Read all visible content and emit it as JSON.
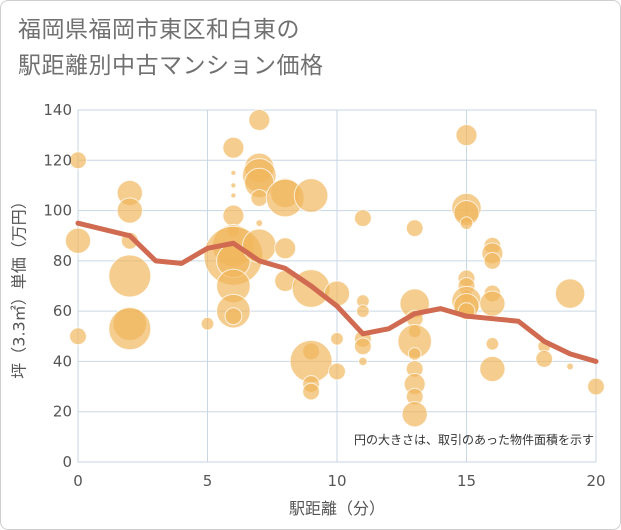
{
  "title_line1": "福岡県福岡市東区和白東の",
  "title_line2": "駅距離別中古マンション価格",
  "chart_data": {
    "type": "scatter",
    "xlabel": "駅距離（分）",
    "ylabel": "坪（3.3㎡）単価（万円）",
    "note": "円の大きさは、取引のあった物件面積を示す",
    "xlim": [
      0,
      20
    ],
    "ylim": [
      0,
      140
    ],
    "xticks": [
      "0",
      "5",
      "10",
      "15",
      "20"
    ],
    "yticks": [
      "0",
      "20",
      "40",
      "60",
      "80",
      "100",
      "120",
      "140"
    ],
    "grid": true,
    "colors": {
      "bubble": "#f0b65a",
      "line": "#d06a50",
      "grid": "#c9d6e3"
    },
    "bubbles": [
      {
        "x": 0,
        "y": 120,
        "s": 2
      },
      {
        "x": 0,
        "y": 88,
        "s": 3
      },
      {
        "x": 0,
        "y": 50,
        "s": 2
      },
      {
        "x": 2,
        "y": 107,
        "s": 3
      },
      {
        "x": 2,
        "y": 100,
        "s": 3
      },
      {
        "x": 2,
        "y": 88,
        "s": 2
      },
      {
        "x": 2,
        "y": 74,
        "s": 5
      },
      {
        "x": 2,
        "y": 55,
        "s": 4
      },
      {
        "x": 2,
        "y": 53,
        "s": 5
      },
      {
        "x": 5,
        "y": 55,
        "s": 1.5
      },
      {
        "x": 6,
        "y": 125,
        "s": 2.5
      },
      {
        "x": 6,
        "y": 115,
        "s": 0.6
      },
      {
        "x": 6,
        "y": 110,
        "s": 0.6
      },
      {
        "x": 6,
        "y": 106,
        "s": 0.6
      },
      {
        "x": 6,
        "y": 98,
        "s": 2.5
      },
      {
        "x": 6,
        "y": 92,
        "s": 1.5
      },
      {
        "x": 6,
        "y": 86,
        "s": 5
      },
      {
        "x": 6,
        "y": 82,
        "s": 7
      },
      {
        "x": 6,
        "y": 80,
        "s": 4
      },
      {
        "x": 6,
        "y": 70,
        "s": 4
      },
      {
        "x": 6,
        "y": 60,
        "s": 4
      },
      {
        "x": 6,
        "y": 58,
        "s": 2
      },
      {
        "x": 7,
        "y": 136,
        "s": 2.5
      },
      {
        "x": 7,
        "y": 117,
        "s": 3.5
      },
      {
        "x": 7,
        "y": 114,
        "s": 4
      },
      {
        "x": 7,
        "y": 111,
        "s": 3.5
      },
      {
        "x": 7,
        "y": 105,
        "s": 2
      },
      {
        "x": 7,
        "y": 95,
        "s": 0.8
      },
      {
        "x": 7,
        "y": 86,
        "s": 4
      },
      {
        "x": 8,
        "y": 107,
        "s": 3.5
      },
      {
        "x": 8,
        "y": 105,
        "s": 4.5
      },
      {
        "x": 8,
        "y": 85,
        "s": 2.5
      },
      {
        "x": 8,
        "y": 72,
        "s": 2.5
      },
      {
        "x": 9,
        "y": 106,
        "s": 4
      },
      {
        "x": 9,
        "y": 69,
        "s": 4.5
      },
      {
        "x": 9,
        "y": 44,
        "s": 2
      },
      {
        "x": 9,
        "y": 40,
        "s": 5
      },
      {
        "x": 9,
        "y": 31,
        "s": 2
      },
      {
        "x": 9,
        "y": 28,
        "s": 2
      },
      {
        "x": 10,
        "y": 67,
        "s": 3
      },
      {
        "x": 10,
        "y": 49,
        "s": 1.5
      },
      {
        "x": 10,
        "y": 36,
        "s": 2
      },
      {
        "x": 11,
        "y": 97,
        "s": 2
      },
      {
        "x": 11,
        "y": 64,
        "s": 1.5
      },
      {
        "x": 11,
        "y": 60,
        "s": 1.5
      },
      {
        "x": 11,
        "y": 49,
        "s": 2
      },
      {
        "x": 11,
        "y": 46,
        "s": 2
      },
      {
        "x": 11,
        "y": 40,
        "s": 1
      },
      {
        "x": 13,
        "y": 93,
        "s": 2
      },
      {
        "x": 13,
        "y": 63,
        "s": 3.5
      },
      {
        "x": 13,
        "y": 57,
        "s": 2
      },
      {
        "x": 13,
        "y": 52,
        "s": 1.5
      },
      {
        "x": 13,
        "y": 48,
        "s": 4
      },
      {
        "x": 13,
        "y": 43,
        "s": 1.5
      },
      {
        "x": 13,
        "y": 37,
        "s": 2
      },
      {
        "x": 13,
        "y": 31,
        "s": 2.5
      },
      {
        "x": 13,
        "y": 26,
        "s": 2
      },
      {
        "x": 13,
        "y": 19,
        "s": 3
      },
      {
        "x": 15,
        "y": 130,
        "s": 2.5
      },
      {
        "x": 15,
        "y": 101,
        "s": 3.5
      },
      {
        "x": 15,
        "y": 99,
        "s": 3
      },
      {
        "x": 15,
        "y": 95,
        "s": 1.5
      },
      {
        "x": 15,
        "y": 73,
        "s": 2
      },
      {
        "x": 15,
        "y": 70,
        "s": 2
      },
      {
        "x": 15,
        "y": 66,
        "s": 1.5
      },
      {
        "x": 15,
        "y": 64,
        "s": 3.5
      },
      {
        "x": 15,
        "y": 62,
        "s": 3
      },
      {
        "x": 15,
        "y": 60,
        "s": 2
      },
      {
        "x": 16,
        "y": 86,
        "s": 2
      },
      {
        "x": 16,
        "y": 83,
        "s": 2.5
      },
      {
        "x": 16,
        "y": 80,
        "s": 2
      },
      {
        "x": 16,
        "y": 67,
        "s": 2
      },
      {
        "x": 16,
        "y": 63,
        "s": 3
      },
      {
        "x": 16,
        "y": 47,
        "s": 1.5
      },
      {
        "x": 16,
        "y": 37,
        "s": 3
      },
      {
        "x": 18,
        "y": 46,
        "s": 1.5
      },
      {
        "x": 18,
        "y": 41,
        "s": 2
      },
      {
        "x": 19,
        "y": 67,
        "s": 3.5
      },
      {
        "x": 19,
        "y": 38,
        "s": 0.8
      },
      {
        "x": 20,
        "y": 30,
        "s": 2
      }
    ],
    "series": [
      {
        "type": "line",
        "x": [
          0,
          2,
          3,
          4,
          5,
          6,
          7,
          8,
          9,
          10,
          11,
          12,
          13,
          14,
          15,
          16,
          17,
          18,
          19,
          20
        ],
        "values": [
          95,
          90,
          80,
          79,
          85,
          87,
          80,
          77,
          70,
          62,
          51,
          53,
          59,
          61,
          58,
          57,
          56,
          48,
          43,
          40
        ]
      }
    ]
  }
}
